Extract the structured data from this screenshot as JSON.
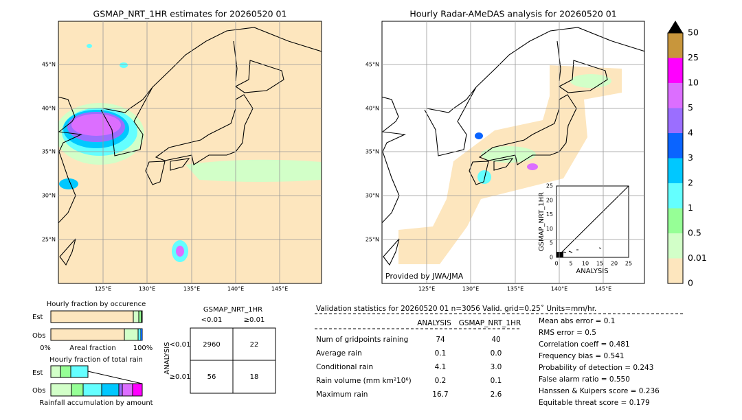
{
  "left_map": {
    "title": "GSMAP_NRT_1HR estimates for 20260520 01",
    "lat_labels": [
      "45°N",
      "40°N",
      "35°N",
      "30°N",
      "25°N"
    ],
    "lon_labels": [
      "125°E",
      "130°E",
      "135°E",
      "140°E",
      "145°E"
    ]
  },
  "right_map": {
    "title": "Hourly Radar-AMeDAS analysis for 20260520 01",
    "lat_labels": [
      "45°N",
      "40°N",
      "35°N",
      "30°N",
      "25°N"
    ],
    "lon_labels": [
      "125°E",
      "130°E",
      "135°E",
      "140°E",
      "145°E"
    ],
    "credit": "Provided by JWA/JMA"
  },
  "inset": {
    "ylabel": "GSMAP_NRT_1HR",
    "xlabel": "ANALYSIS",
    "ticks": [
      "0",
      "5",
      "10",
      "15",
      "20",
      "25"
    ]
  },
  "colorbar": {
    "labels": [
      "50",
      "25",
      "10",
      "5",
      "4",
      "3",
      "2",
      "1",
      "0.5",
      "0.01",
      "0"
    ],
    "colors": [
      "#c8963c",
      "#ff00ff",
      "#dc6eff",
      "#9b6eff",
      "#0a64ff",
      "#00c8ff",
      "#64ffff",
      "#96ff96",
      "#d2ffc8",
      "#fde6be"
    ]
  },
  "occurrence": {
    "title": "Hourly fraction by occurence",
    "rows": [
      "Est",
      "Obs"
    ],
    "axis": [
      "0%",
      "Areal fraction",
      "100%"
    ]
  },
  "total_rain": {
    "title": "Hourly fraction of total rain",
    "rows": [
      "Est",
      "Obs"
    ],
    "footer": "Rainfall accumulation by amount"
  },
  "contingency": {
    "title": "GSMAP_NRT_1HR",
    "cols": [
      "<0.01",
      "≥0.01"
    ],
    "row_title": "ANALYSIS",
    "rows": [
      "<0.01",
      "≥0.01"
    ],
    "cells": [
      [
        "2960",
        "22"
      ],
      [
        "56",
        "18"
      ]
    ]
  },
  "validation": {
    "header": "Validation statistics for 20260520 01  n=3056 Valid. grid=0.25˚ Units=mm/hr.",
    "columns": [
      "ANALYSIS",
      "GSMAP_NRT_1HR"
    ],
    "rows": [
      [
        "Num of gridpoints raining",
        "74",
        "40"
      ],
      [
        "Average rain",
        "0.1",
        "0.0"
      ],
      [
        "Conditional rain",
        "4.1",
        "3.0"
      ],
      [
        "Rain volume (mm km²10⁶)",
        "0.2",
        "0.1"
      ],
      [
        "Maximum rain",
        "16.7",
        "2.6"
      ]
    ],
    "scores": [
      "Mean abs error =    0.1",
      "RMS error =    0.5",
      "Correlation coeff =  0.481",
      "Frequency bias =  0.541",
      "Probability of detection =  0.243",
      "False alarm ratio =  0.550",
      "Hanssen & Kuipers score =  0.236",
      "Equitable threat score =  0.179"
    ]
  }
}
